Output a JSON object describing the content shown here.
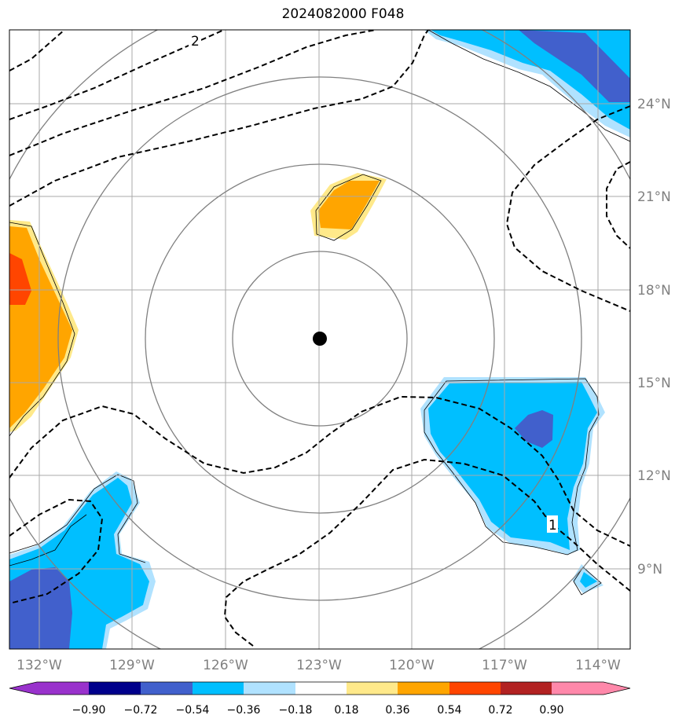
{
  "title": "2024082000 F048",
  "center_marker": {
    "lon": -123.0,
    "lat": 16.4
  },
  "longitude_labels": [
    "132°W",
    "129°W",
    "126°W",
    "123°W",
    "120°W",
    "117°W",
    "114°W"
  ],
  "latitude_labels": [
    "24°N",
    "21°N",
    "18°N",
    "15°N",
    "12°N",
    "9°N"
  ],
  "contour_labels": [
    "2",
    "1"
  ],
  "colorbar": {
    "tick_labels": [
      "−0.90",
      "−0.72",
      "−0.54",
      "−0.36",
      "−0.18",
      "0.18",
      "0.36",
      "0.54",
      "0.72",
      "0.90"
    ],
    "colors": [
      "#9932CC",
      "#00008B",
      "#4160CC",
      "#00BFFF",
      "#B0E2FF",
      "#FFFFFF",
      "#FFE98A",
      "#FFA500",
      "#FF4500",
      "#B22222",
      "#FF88AA"
    ]
  },
  "palette": {
    "orange": "#FFA500",
    "red_orange": "#FF4500",
    "light_yellow": "#FFE98A",
    "deep_sky_blue": "#00BFFF",
    "light_blue": "#B0E2FF",
    "royal_blue": "#4160CC",
    "grid_gray": "#A9A9A9",
    "ring_gray": "#808080"
  }
}
